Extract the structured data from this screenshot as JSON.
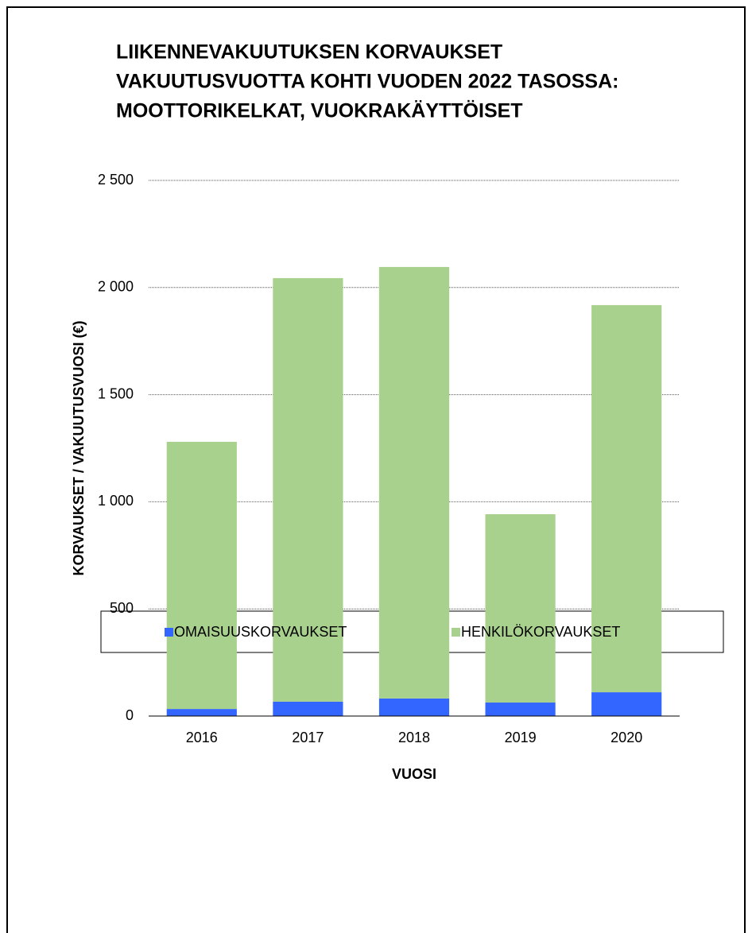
{
  "chart_data": {
    "type": "stacked_bar",
    "title": [
      "LIIKENNEVAKUUTUKSEN KORVAUKSET",
      "VAKUUTUSVUOTTA KOHTI VUODEN 2022 TASOSSA:",
      "MOOTTORIKELKAT, VUOKRAKÄYTTÖISET"
    ],
    "x_label": "VUOSI",
    "y_label": "KORVAUKSET / VAKUUTUSVUOSI (€)",
    "categories": [
      "2016",
      "2017",
      "2018",
      "2019",
      "2020"
    ],
    "series": [
      {
        "name": "OMAISUUSKORVAUKSET",
        "color": "#3366ff",
        "values": [
          33,
          67,
          82,
          63,
          111
        ]
      },
      {
        "name": "HENKILÖKORVAUKSET",
        "color": "#a9d18e",
        "values": [
          1247,
          1977,
          2014,
          879,
          1807
        ]
      }
    ],
    "ylim": [
      0,
      2500
    ],
    "yticks": [
      0,
      500,
      {
        "value": 1000,
        "label": "1 000"
      },
      {
        "value": 1500,
        "label": "1 500"
      },
      {
        "value": 2000,
        "label": "2 000"
      },
      {
        "value": 2500,
        "label": "2 500"
      }
    ],
    "grid": true,
    "legend": "bottom"
  }
}
